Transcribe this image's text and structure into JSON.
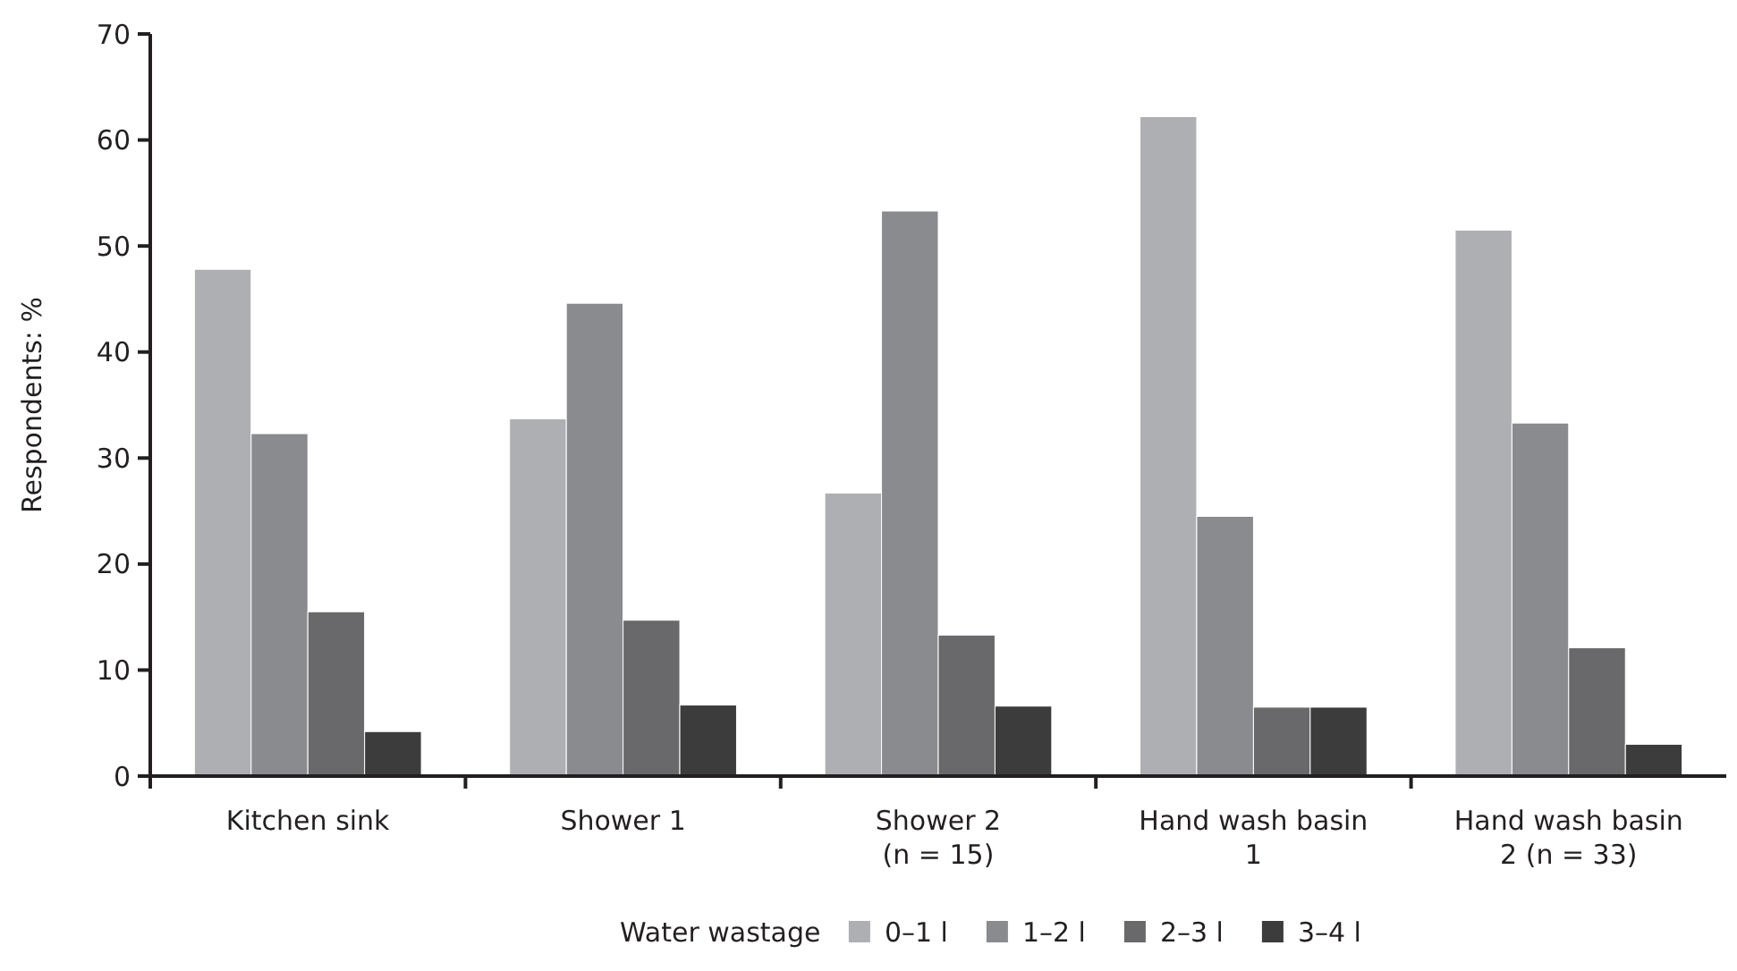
{
  "chart_data": {
    "type": "bar",
    "ylabel": "Respondents: %",
    "legend_title": "Water wastage",
    "legend": "bottom",
    "grid": false,
    "categories": [
      "Kitchen sink",
      "Shower 1",
      "Shower 2\n(n = 15)",
      "Hand wash basin\n1",
      "Hand wash basin\n2 (n = 33)"
    ],
    "series": [
      {
        "name": "0–1 l",
        "color": "#aeafb2",
        "values": [
          47.8,
          33.7,
          26.7,
          62.2,
          51.5
        ]
      },
      {
        "name": "1–2 l",
        "color": "#8a8b8f",
        "values": [
          32.3,
          44.6,
          53.3,
          24.5,
          33.3
        ]
      },
      {
        "name": "2–3 l",
        "color": "#69696b",
        "values": [
          15.5,
          14.7,
          13.3,
          6.5,
          12.1
        ]
      },
      {
        "name": "3–4 l",
        "color": "#3c3c3c",
        "values": [
          4.2,
          6.7,
          6.6,
          6.5,
          3.0
        ]
      }
    ],
    "ylim": [
      0,
      70
    ],
    "yticks": [
      0,
      10,
      20,
      30,
      40,
      50,
      60,
      70
    ]
  }
}
